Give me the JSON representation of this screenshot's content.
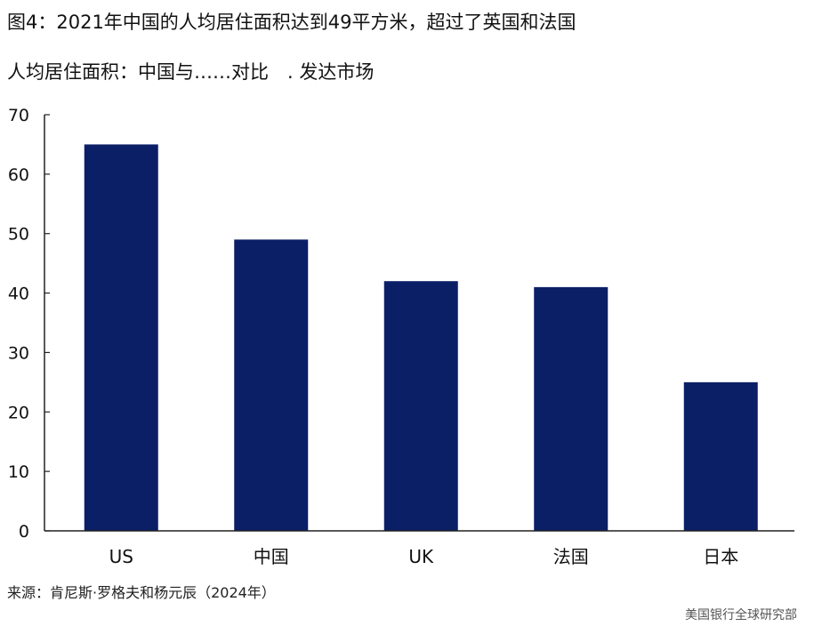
{
  "figure": {
    "title": "图4：2021年中国的人均居住面积达到49平方米，超过了英国和法国",
    "source": "来源：肯尼斯·罗格夫和杨元辰（2024年）",
    "watermark": "美国银行全球研究部"
  },
  "chart_data": {
    "type": "bar",
    "title": "人均居住面积：中国与……对比　. 发达市场",
    "categories": [
      "US",
      "中国",
      "UK",
      "法国",
      "日本"
    ],
    "values": [
      65,
      49,
      42,
      41,
      25
    ],
    "xlabel": "",
    "ylabel": "",
    "ylim": [
      0,
      70
    ],
    "yticks": [
      0,
      10,
      20,
      30,
      40,
      50,
      60,
      70
    ],
    "grid": false,
    "legend": "none",
    "bar_color": "#0b1f66",
    "axis_color": "#222222"
  }
}
